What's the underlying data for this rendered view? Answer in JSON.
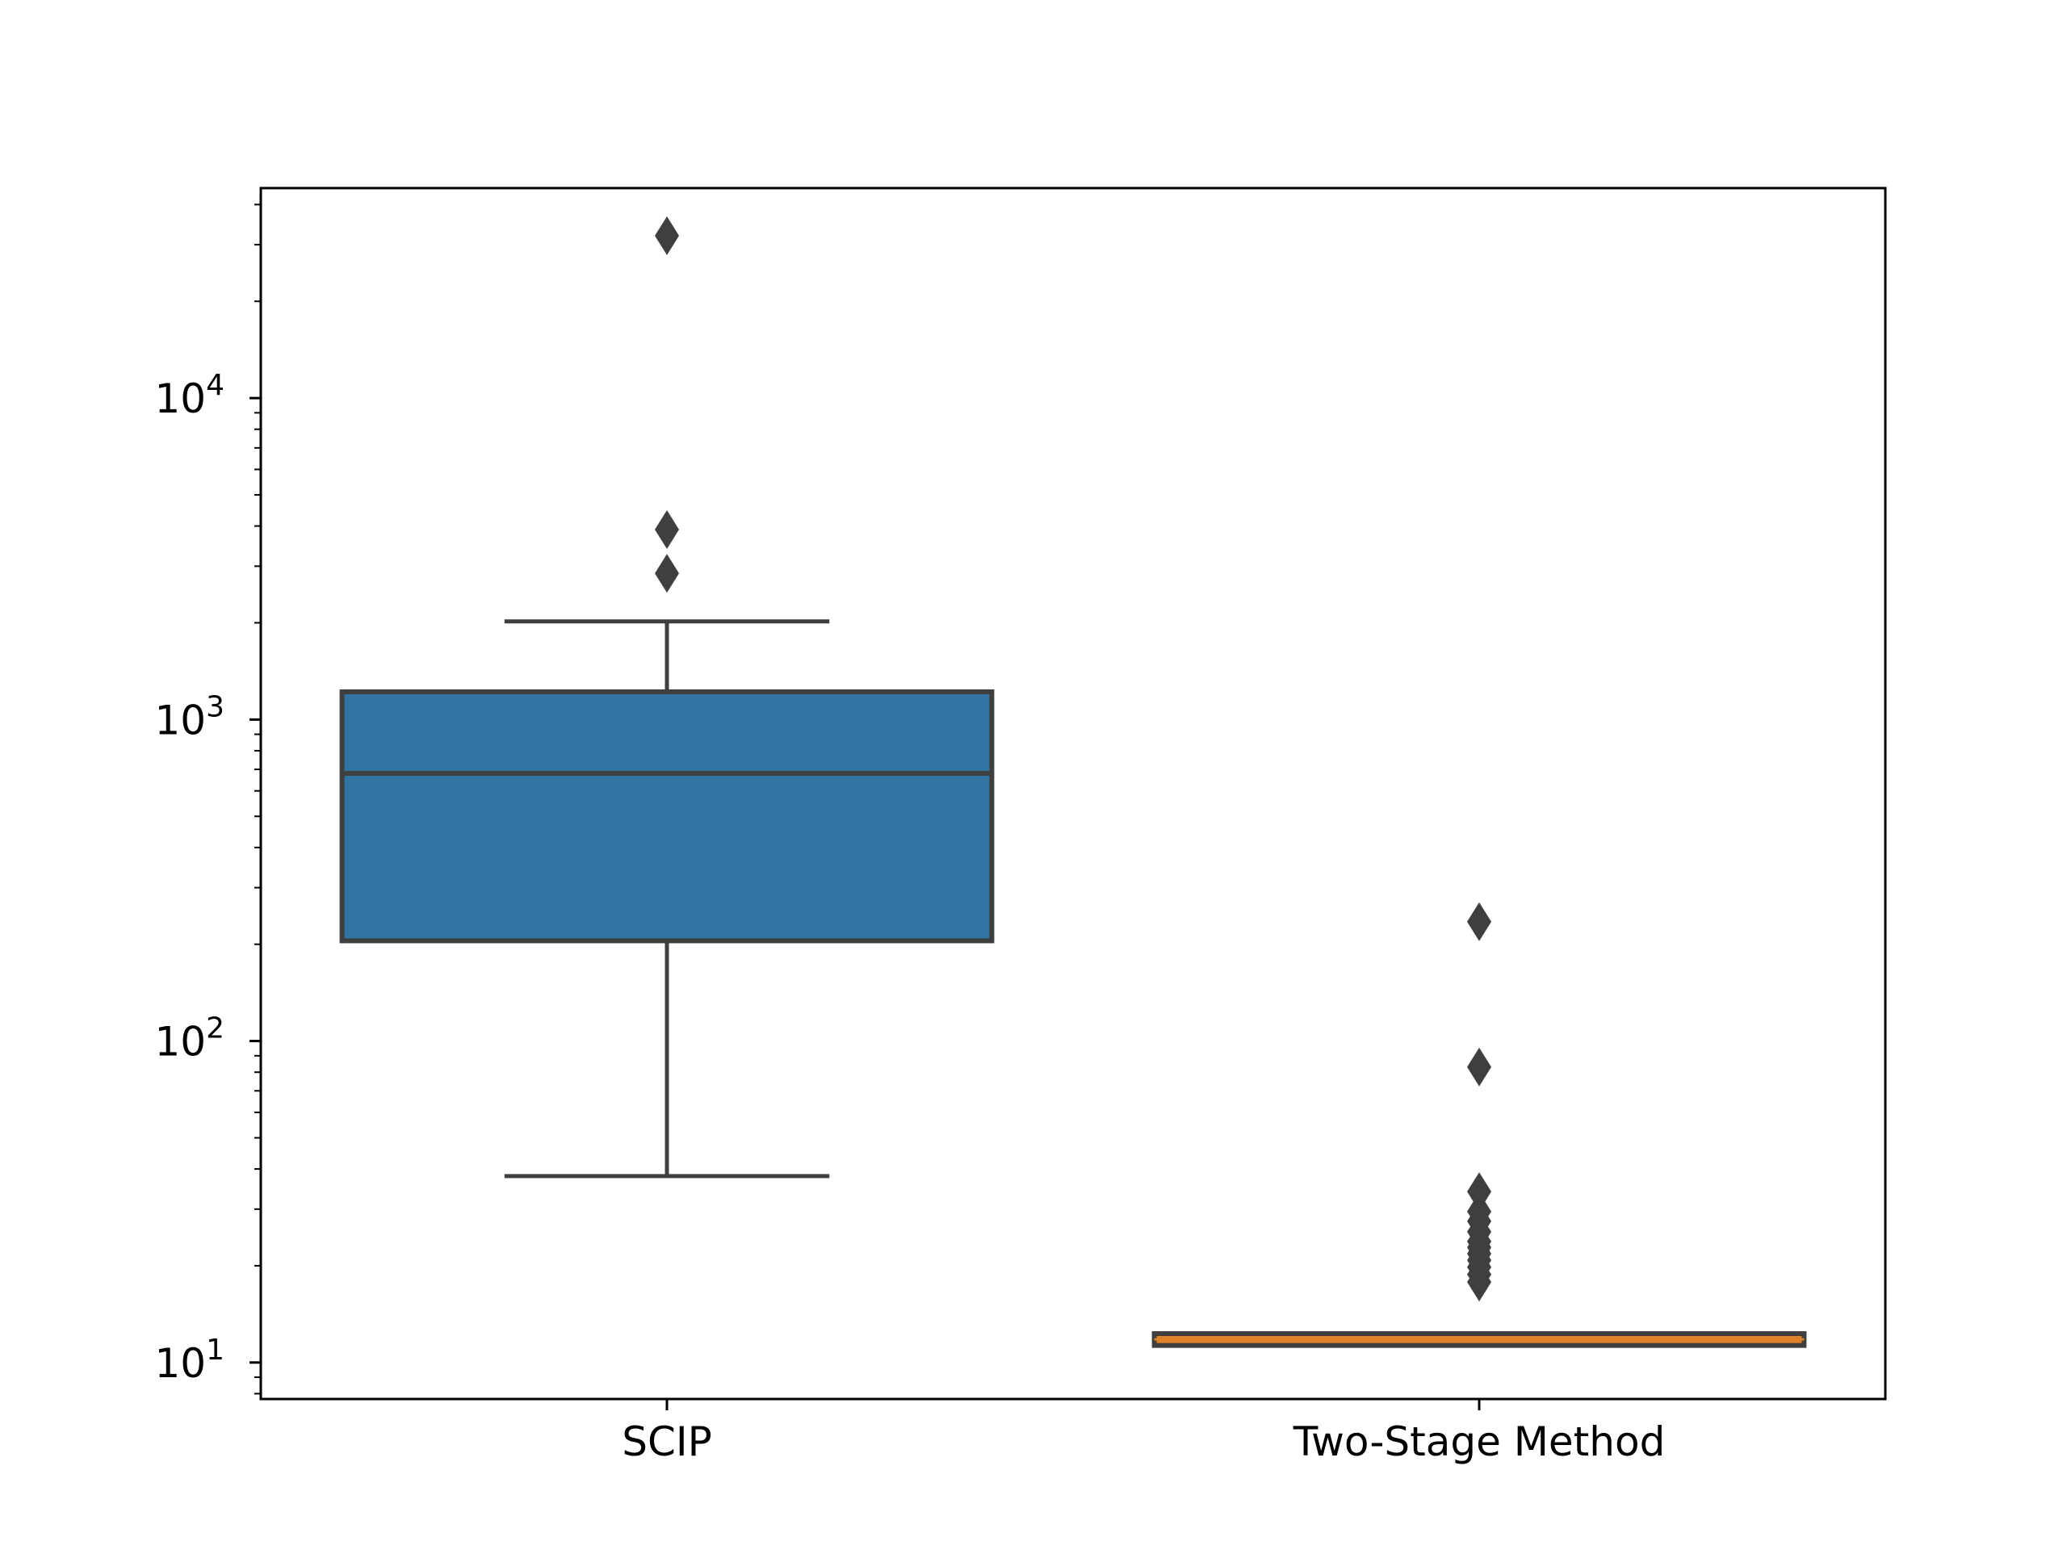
{
  "chart_data": {
    "type": "box",
    "categories": [
      "SCIP",
      "Two-Stage Method"
    ],
    "yscale": "log",
    "ylim": [
      7.7,
      45000
    ],
    "yticks": [
      {
        "value": 10,
        "base": "10",
        "exp": "1"
      },
      {
        "value": 100,
        "base": "10",
        "exp": "2"
      },
      {
        "value": 1000,
        "base": "10",
        "exp": "3"
      },
      {
        "value": 10000,
        "base": "10",
        "exp": "4"
      }
    ],
    "boxes": [
      {
        "category": "SCIP",
        "whisker_low": 38,
        "q1": 205,
        "median": 680,
        "q3": 1220,
        "whisker_high": 2020,
        "outliers": [
          2850,
          3900,
          32000
        ],
        "fill": "#3274a1",
        "median_color": "#3f3f3f"
      },
      {
        "category": "Two-Stage Method",
        "whisker_low": 11.3,
        "q1": 11.3,
        "median": 11.8,
        "q3": 12.3,
        "whisker_high": 12.3,
        "outliers": [
          17.8,
          18.8,
          19.8,
          20.8,
          21.8,
          22.8,
          23.8,
          25.5,
          27.5,
          29.5,
          34,
          83,
          235
        ],
        "fill": "#e1812c",
        "median_color": "#e1812c"
      }
    ],
    "colors": {
      "box_edge": "#3f3f3f",
      "outlier": "#3f3f3f",
      "axes": "#000000"
    }
  }
}
